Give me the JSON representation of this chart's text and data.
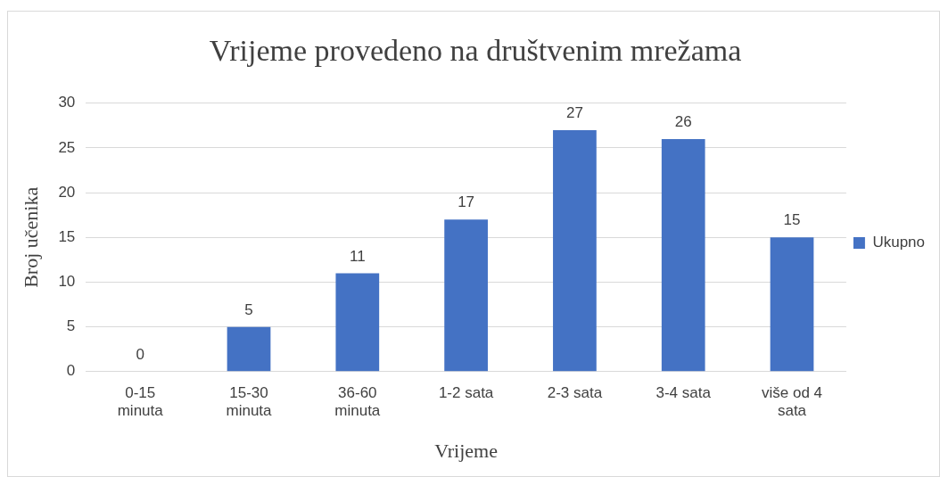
{
  "chart_data": {
    "type": "bar",
    "title": "Vrijeme provedeno na društvenim mrežama",
    "xlabel": "Vrijeme",
    "ylabel": "Broj učenika",
    "categories": [
      "0-15 minuta",
      "15-30 minuta",
      "36-60 minuta",
      "1-2 sata",
      "2-3 sata",
      "3-4 sata",
      "više od 4 sata"
    ],
    "series": [
      {
        "name": "Ukupno",
        "color": "#4472c4",
        "values": [
          0,
          5,
          11,
          17,
          27,
          26,
          15
        ]
      }
    ],
    "ylim": [
      0,
      30
    ],
    "yticks": [
      0,
      5,
      10,
      15,
      20,
      25,
      30
    ],
    "grid": "y",
    "legend": "right",
    "data_labels": true
  }
}
